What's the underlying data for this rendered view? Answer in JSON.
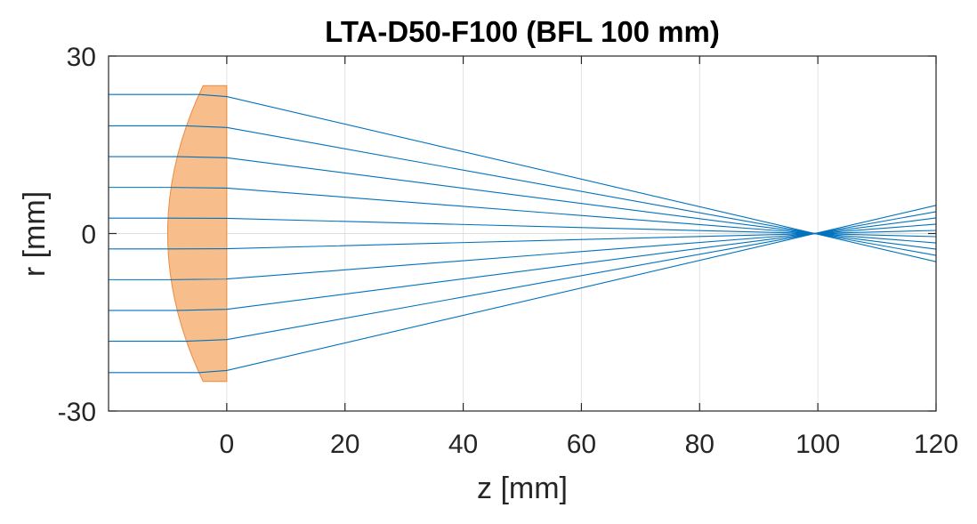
{
  "chart_data": {
    "type": "line",
    "title": "LTA-D50-F100 (BFL 100 mm)",
    "xlabel": "z [mm]",
    "ylabel": "r [mm]",
    "xlim": [
      -20,
      120
    ],
    "ylim": [
      -30,
      30
    ],
    "xticks": [
      0,
      20,
      40,
      60,
      80,
      100,
      120
    ],
    "xtick_labels": [
      "0",
      "20",
      "40",
      "60",
      "80",
      "100",
      "120"
    ],
    "yticks": [
      -30,
      0,
      30
    ],
    "ytick_labels": [
      "-30",
      "0",
      "30"
    ],
    "grid": "x-only",
    "focal_point": [
      99.5,
      0
    ],
    "lens": {
      "shape": "plano-convex",
      "color": "#F7BD8A",
      "edge_color": "#EE8A3E",
      "flat_face_z": 0,
      "curved_edge_z": -4,
      "vertex_z": -10,
      "half_aperture": 25
    },
    "rays": {
      "color": "#0072BD",
      "z_start": -20,
      "z_end": 120,
      "heights": [
        23.5,
        18.2,
        13.0,
        7.8,
        2.6,
        -2.6,
        -7.8,
        -13.0,
        -18.2,
        -23.5
      ]
    },
    "colors": {
      "axes": "#262626",
      "grid": "#e3e3e3",
      "zero_line": "#dcdcdc"
    }
  }
}
